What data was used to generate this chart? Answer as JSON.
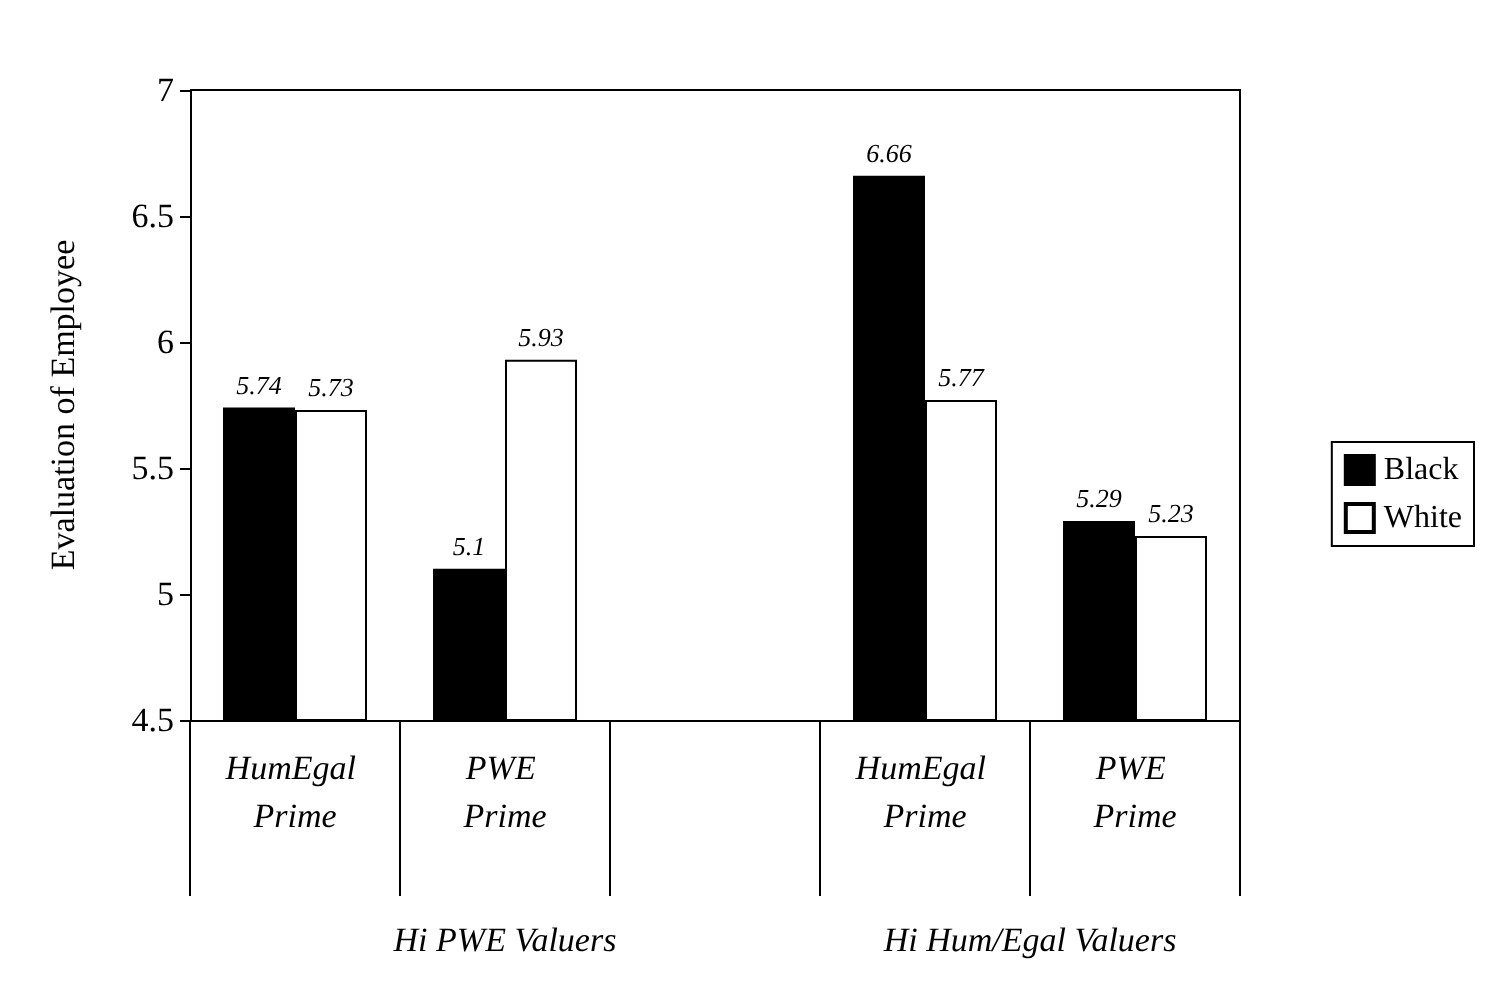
{
  "chart_data": {
    "type": "bar",
    "ylabel": "Evaluation of Employee",
    "categories": [
      "HumEgal Prime",
      "PWE Prime",
      null,
      "HumEgal Prime",
      "PWE Prime"
    ],
    "series": [
      {
        "name": "Black",
        "color": "#000000",
        "values": [
          5.74,
          5.1,
          null,
          6.66,
          5.29
        ]
      },
      {
        "name": "White",
        "color": "#ffffff",
        "values": [
          5.73,
          5.93,
          null,
          5.77,
          5.23
        ]
      }
    ],
    "ylim": [
      4.5,
      7
    ],
    "yticks": [
      4.5,
      5,
      5.5,
      6,
      6.5,
      7
    ],
    "data_labels": true,
    "grid": false,
    "legend": "right",
    "annotations": [
      "Hi PWE Valuers",
      "Hi Hum/Egal Valuers"
    ]
  }
}
